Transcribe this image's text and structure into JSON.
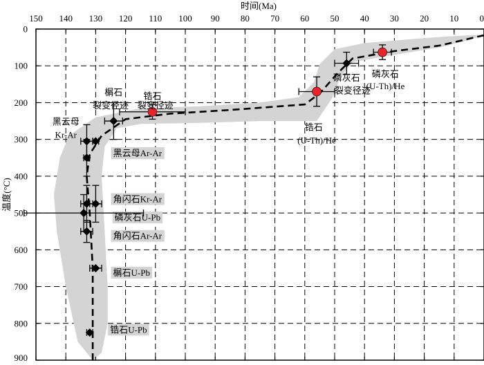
{
  "chart_data": {
    "type": "scatter",
    "xlabel": "时间(Ma)",
    "ylabel": "温度(°C)",
    "xlim": [
      150,
      0
    ],
    "ylim": [
      0,
      900
    ],
    "x_ticks": [
      "150",
      "140",
      "130",
      "120",
      "110",
      "100",
      "90",
      "80",
      "70",
      "60",
      "50",
      "40",
      "30",
      "20",
      "10",
      "0"
    ],
    "y_ticks": [
      "0",
      "100",
      "200",
      "300",
      "400",
      "500",
      "600",
      "700",
      "800",
      "900"
    ],
    "grid": true,
    "points": [
      {
        "x": 132,
        "y": 825,
        "xerr": 1,
        "yerr": 0,
        "marker": "diamond",
        "color": "#000000"
      },
      {
        "x": 130,
        "y": 650,
        "xerr": 2,
        "yerr": 0,
        "marker": "diamond",
        "color": "#000000"
      },
      {
        "x": 133,
        "y": 550,
        "xerr": 2,
        "yerr": 30,
        "marker": "diamond",
        "color": "#000000"
      },
      {
        "x": 133,
        "y": 475,
        "xerr": 2,
        "yerr": 50,
        "marker": "diamond",
        "color": "#000000"
      },
      {
        "x": 130,
        "y": 475,
        "xerr": 2,
        "yerr": 50,
        "marker": "diamond",
        "color": "#000000"
      },
      {
        "x": 134,
        "y": 500,
        "xerr": 20,
        "yerr": 50,
        "marker": "diamond",
        "color": "#000000"
      },
      {
        "x": 133,
        "y": 350,
        "xerr": 1,
        "yerr": 50,
        "marker": "diamond",
        "color": "#000000"
      },
      {
        "x": 133,
        "y": 305,
        "xerr": 2,
        "yerr": 45,
        "marker": "diamond",
        "color": "#000000"
      },
      {
        "x": 130,
        "y": 305,
        "xerr": 1,
        "yerr": 0,
        "marker": "diamond",
        "color": "#000000"
      },
      {
        "x": 124,
        "y": 250,
        "xerr": 3,
        "yerr": 50,
        "marker": "diamond",
        "color": "#000000"
      },
      {
        "x": 111,
        "y": 225,
        "xerr": 11,
        "yerr": 20,
        "marker": "circle",
        "color": "#e8242a"
      },
      {
        "x": 56,
        "y": 170,
        "xerr": 6,
        "yerr": 40,
        "marker": "circle",
        "color": "#e8242a"
      },
      {
        "x": 46,
        "y": 93,
        "xerr": 4,
        "yerr": 30,
        "marker": "diamond",
        "color": "#000000"
      },
      {
        "x": 34,
        "y": 63,
        "xerr": 3,
        "yerr": 20,
        "marker": "circle",
        "color": "#e8242a"
      }
    ],
    "path": [
      [
        131,
        900
      ],
      [
        131,
        650
      ],
      [
        132,
        500
      ],
      [
        133,
        400
      ],
      [
        132,
        340
      ],
      [
        128,
        290
      ],
      [
        120,
        245
      ],
      [
        105,
        230
      ],
      [
        85,
        220
      ],
      [
        60,
        205
      ],
      [
        55,
        175
      ],
      [
        49,
        120
      ],
      [
        44,
        80
      ],
      [
        30,
        60
      ],
      [
        15,
        45
      ],
      [
        0,
        17
      ]
    ],
    "envelope": [
      [
        131,
        900
      ],
      [
        136,
        850
      ],
      [
        140,
        700
      ],
      [
        143,
        550
      ],
      [
        144,
        450
      ],
      [
        142,
        350
      ],
      [
        139,
        290
      ],
      [
        130,
        240
      ],
      [
        115,
        215
      ],
      [
        95,
        210
      ],
      [
        75,
        200
      ],
      [
        62,
        185
      ],
      [
        57,
        145
      ],
      [
        55,
        95
      ],
      [
        50,
        55
      ],
      [
        40,
        38
      ],
      [
        25,
        28
      ],
      [
        12,
        20
      ],
      [
        0,
        15
      ],
      [
        5,
        30
      ],
      [
        15,
        50
      ],
      [
        30,
        70
      ],
      [
        44,
        90
      ],
      [
        48,
        130
      ],
      [
        51,
        190
      ],
      [
        56,
        250
      ],
      [
        75,
        250
      ],
      [
        95,
        255
      ],
      [
        115,
        258
      ],
      [
        123,
        270
      ],
      [
        127,
        320
      ],
      [
        128,
        400
      ],
      [
        127,
        550
      ],
      [
        126,
        700
      ],
      [
        126,
        800
      ],
      [
        128,
        880
      ],
      [
        131,
        900
      ]
    ],
    "colors": {
      "envelope": "#d4d4d4",
      "hot_points": "#e8242a",
      "axes": "#000000"
    },
    "annotations": [
      {
        "text": "黑云母",
        "x": 140,
        "y": 255
      },
      {
        "text": "Kr-Ar",
        "x": 140,
        "y": 290
      },
      {
        "text": "黑云母Ar-Ar",
        "x": 116,
        "y": 340
      },
      {
        "text": "榍石",
        "x": 124,
        "y": 175
      },
      {
        "text": "裂变径迹",
        "x": 125,
        "y": 210
      },
      {
        "text": "锆石",
        "x": 111,
        "y": 185
      },
      {
        "text": "裂变径迹",
        "x": 110,
        "y": 210
      },
      {
        "text": "锆石",
        "x": 57,
        "y": 270
      },
      {
        "text": "(U-Th)/He",
        "x": 56,
        "y": 305
      },
      {
        "text": "磷灰石",
        "x": 46,
        "y": 135
      },
      {
        "text": "裂变径迹",
        "x": 44,
        "y": 170
      },
      {
        "text": "磷灰石",
        "x": 33,
        "y": 125
      },
      {
        "text": "(U-Th)/He",
        "x": 33,
        "y": 158
      },
      {
        "text": "角闪石Kr-Ar",
        "x": 116,
        "y": 465
      },
      {
        "text": "磷灰石U-Pb",
        "x": 116,
        "y": 515
      },
      {
        "text": "角闪石Ar-Ar",
        "x": 116,
        "y": 565
      },
      {
        "text": "榍石U-Pb",
        "x": 118,
        "y": 665
      },
      {
        "text": "锆石U-Pb",
        "x": 119,
        "y": 820
      }
    ]
  }
}
